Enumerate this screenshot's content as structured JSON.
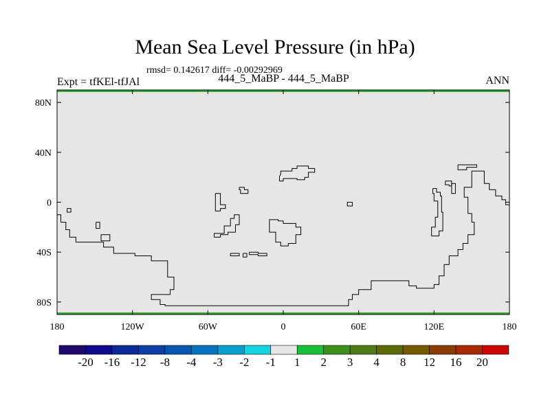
{
  "header": {
    "title": "Mean Sea Level Pressure (in hPa)",
    "stats": "rmsd= 0.142617 diff= -0.00292969",
    "left": "Expt = tfKEl-tfJAl",
    "center": "444_5_MaBP - 444_5_MaBP",
    "right": "ANN"
  },
  "chart_data": {
    "type": "heatmap",
    "title": "Mean Sea Level Pressure (in hPa)",
    "subtitle": "444_5_MaBP - 444_5_MaBP",
    "xlim": [
      -180,
      180
    ],
    "ylim": [
      -90,
      90
    ],
    "x_ticks": [
      {
        "value": -180,
        "label": "180"
      },
      {
        "value": -120,
        "label": "120W"
      },
      {
        "value": -60,
        "label": "60W"
      },
      {
        "value": 0,
        "label": "0"
      },
      {
        "value": 60,
        "label": "60E"
      },
      {
        "value": 120,
        "label": "120E"
      },
      {
        "value": 180,
        "label": "180"
      }
    ],
    "y_ticks": [
      {
        "value": 80,
        "label": "80N"
      },
      {
        "value": 40,
        "label": "40N"
      },
      {
        "value": 0,
        "label": "0"
      },
      {
        "value": -40,
        "label": "40S"
      },
      {
        "value": -80,
        "label": "80S"
      }
    ],
    "field_level": "-1 to 1",
    "field_color": "#e6e6e6",
    "edge_band_color": "#3aa33a",
    "colorbar": {
      "levels": [
        "-20",
        "-16",
        "-12",
        "-8",
        "-4",
        "-3",
        "-2",
        "-1",
        "1",
        "2",
        "3",
        "4",
        "8",
        "12",
        "16",
        "20"
      ],
      "colors": [
        "#1f0a6b",
        "#100a8c",
        "#0d2a99",
        "#0f3fa6",
        "#0a55b0",
        "#0a73c0",
        "#0a9fd0",
        "#16d4df",
        "#e6e6e6",
        "#1cbf3c",
        "#3f8f1c",
        "#507a14",
        "#5c6a0a",
        "#755a05",
        "#8a3e05",
        "#a52a05",
        "#cc0606"
      ]
    },
    "coastlines": [
      [
        [
          -180,
          -10
        ],
        [
          -177,
          -10
        ],
        [
          -177,
          -16
        ],
        [
          -173,
          -16
        ],
        [
          -173,
          -22
        ],
        [
          -170,
          -22
        ],
        [
          -170,
          -28
        ],
        [
          -165,
          -28
        ],
        [
          -165,
          -32
        ],
        [
          -143,
          -32
        ],
        [
          -143,
          -36
        ],
        [
          -135,
          -36
        ],
        [
          -135,
          -41
        ],
        [
          -118,
          -41
        ],
        [
          -118,
          -43
        ],
        [
          -105,
          -43
        ],
        [
          -105,
          -47
        ],
        [
          -92,
          -47
        ],
        [
          -92,
          -60
        ],
        [
          -87,
          -60
        ],
        [
          -87,
          -70
        ],
        [
          -90,
          -70
        ],
        [
          -90,
          -74
        ],
        [
          -105,
          -74
        ],
        [
          -105,
          -78
        ],
        [
          -98,
          -78
        ],
        [
          -98,
          -82
        ],
        [
          -94,
          -82
        ],
        [
          -94,
          -83
        ],
        [
          -40,
          -83
        ],
        [
          20,
          -83
        ],
        [
          52,
          -83
        ],
        [
          52,
          -78
        ],
        [
          55,
          -78
        ],
        [
          55,
          -74
        ],
        [
          60,
          -74
        ],
        [
          60,
          -70
        ],
        [
          70,
          -70
        ],
        [
          70,
          -63
        ],
        [
          100,
          -63
        ],
        [
          100,
          -67
        ],
        [
          106,
          -67
        ],
        [
          106,
          -69
        ],
        [
          120,
          -69
        ],
        [
          120,
          -66
        ],
        [
          124,
          -66
        ],
        [
          124,
          -59
        ],
        [
          128,
          -59
        ],
        [
          128,
          -50
        ],
        [
          132,
          -50
        ],
        [
          132,
          -43
        ],
        [
          139,
          -43
        ],
        [
          139,
          -38
        ],
        [
          143,
          -38
        ],
        [
          143,
          -33
        ],
        [
          147,
          -33
        ],
        [
          147,
          -26
        ],
        [
          152,
          -26
        ],
        [
          152,
          -16
        ],
        [
          150,
          -16
        ],
        [
          150,
          -9
        ],
        [
          147,
          -9
        ],
        [
          147,
          4
        ],
        [
          144,
          4
        ],
        [
          144,
          12
        ],
        [
          150,
          12
        ],
        [
          150,
          25
        ],
        [
          160,
          25
        ],
        [
          160,
          15
        ],
        [
          164,
          15
        ],
        [
          164,
          10
        ],
        [
          169,
          10
        ],
        [
          169,
          5
        ],
        [
          174,
          5
        ],
        [
          174,
          2
        ],
        [
          177,
          2
        ],
        [
          177,
          -2
        ],
        [
          180,
          -2
        ]
      ],
      [
        [
          -172,
          -5
        ],
        [
          -169,
          -5
        ],
        [
          -169,
          -8
        ],
        [
          -172,
          -8
        ],
        [
          -172,
          -5
        ]
      ],
      [
        [
          -149,
          -16
        ],
        [
          -146,
          -16
        ],
        [
          -146,
          -21
        ],
        [
          -149,
          -21
        ],
        [
          -149,
          -16
        ]
      ],
      [
        [
          -145,
          -26
        ],
        [
          -138,
          -26
        ],
        [
          -138,
          -31
        ],
        [
          -145,
          -31
        ],
        [
          -145,
          -26
        ]
      ],
      [
        [
          -54,
          7
        ],
        [
          -50,
          7
        ],
        [
          -50,
          -2
        ],
        [
          -46,
          -2
        ],
        [
          -46,
          -5
        ],
        [
          -50,
          -5
        ],
        [
          -50,
          -7
        ],
        [
          -54,
          -7
        ],
        [
          -54,
          7
        ]
      ],
      [
        [
          -55,
          -28
        ],
        [
          -50,
          -28
        ],
        [
          -50,
          -26
        ],
        [
          -44,
          -26
        ],
        [
          -44,
          -24
        ],
        [
          -38,
          -24
        ],
        [
          -38,
          -18
        ],
        [
          -35,
          -18
        ],
        [
          -35,
          -10
        ],
        [
          -39,
          -10
        ],
        [
          -39,
          -13
        ],
        [
          -42,
          -13
        ],
        [
          -42,
          -19
        ],
        [
          -47,
          -19
        ],
        [
          -47,
          -25
        ],
        [
          -55,
          -25
        ],
        [
          -55,
          -28
        ]
      ],
      [
        [
          -35,
          12
        ],
        [
          -31,
          12
        ],
        [
          -31,
          10
        ],
        [
          -28,
          10
        ],
        [
          -28,
          7
        ],
        [
          -34,
          7
        ],
        [
          -34,
          10
        ],
        [
          -35,
          10
        ],
        [
          -35,
          12
        ]
      ],
      [
        [
          -42,
          -41
        ],
        [
          -35,
          -41
        ],
        [
          -35,
          -43
        ],
        [
          -42,
          -43
        ],
        [
          -42,
          -41
        ]
      ],
      [
        [
          -32,
          -41
        ],
        [
          -29,
          -41
        ],
        [
          -29,
          -44
        ],
        [
          -32,
          -44
        ],
        [
          -32,
          -41
        ]
      ],
      [
        [
          -10,
          -14
        ],
        [
          -4,
          -14
        ],
        [
          -4,
          -15
        ],
        [
          0,
          -15
        ],
        [
          0,
          -17
        ],
        [
          10,
          -17
        ],
        [
          10,
          -20
        ],
        [
          14,
          -20
        ],
        [
          14,
          -26
        ],
        [
          10,
          -26
        ],
        [
          10,
          -33
        ],
        [
          4,
          -33
        ],
        [
          4,
          -35
        ],
        [
          -2,
          -35
        ],
        [
          -2,
          -32
        ],
        [
          -6,
          -32
        ],
        [
          -6,
          -24
        ],
        [
          -11,
          -24
        ],
        [
          -11,
          -21
        ],
        [
          -11,
          -14
        ],
        [
          -10,
          -14
        ]
      ],
      [
        [
          -27,
          -40
        ],
        [
          -20,
          -40
        ],
        [
          -20,
          -41
        ],
        [
          -13,
          -41
        ],
        [
          -13,
          -43
        ],
        [
          -20,
          -43
        ],
        [
          -20,
          -42
        ],
        [
          -27,
          -42
        ],
        [
          -27,
          -40
        ]
      ],
      [
        [
          -2,
          22
        ],
        [
          -2,
          25
        ],
        [
          7,
          25
        ],
        [
          7,
          27
        ],
        [
          11,
          27
        ],
        [
          11,
          29
        ],
        [
          20,
          29
        ],
        [
          20,
          27
        ],
        [
          25,
          27
        ],
        [
          25,
          24
        ],
        [
          20,
          24
        ],
        [
          20,
          20
        ],
        [
          17,
          20
        ],
        [
          17,
          18
        ],
        [
          11,
          18
        ],
        [
          11,
          19
        ],
        [
          0,
          19
        ],
        [
          0,
          17
        ],
        [
          -3,
          17
        ],
        [
          -3,
          21
        ],
        [
          -2,
          22
        ]
      ],
      [
        [
          51,
          0
        ],
        [
          55,
          0
        ],
        [
          55,
          -3
        ],
        [
          51,
          -3
        ],
        [
          51,
          0
        ]
      ],
      [
        [
          119,
          11
        ],
        [
          122,
          11
        ],
        [
          122,
          8
        ],
        [
          125,
          8
        ],
        [
          125,
          5
        ],
        [
          126,
          5
        ],
        [
          126,
          -8
        ],
        [
          127,
          -8
        ],
        [
          127,
          -23
        ],
        [
          124,
          -23
        ],
        [
          124,
          -27
        ],
        [
          118,
          -27
        ],
        [
          118,
          -20
        ],
        [
          121,
          -20
        ],
        [
          121,
          -12
        ],
        [
          123,
          -12
        ],
        [
          123,
          1
        ],
        [
          120,
          1
        ],
        [
          120,
          7
        ],
        [
          119,
          7
        ],
        [
          119,
          11
        ]
      ],
      [
        [
          129,
          17
        ],
        [
          134,
          17
        ],
        [
          134,
          13
        ],
        [
          132,
          13
        ],
        [
          132,
          14
        ],
        [
          129,
          14
        ],
        [
          129,
          17
        ]
      ],
      [
        [
          134,
          15
        ],
        [
          137,
          15
        ],
        [
          137,
          7
        ],
        [
          134,
          7
        ],
        [
          134,
          15
        ]
      ],
      [
        [
          139,
          30
        ],
        [
          154,
          30
        ],
        [
          154,
          28
        ],
        [
          146,
          28
        ],
        [
          146,
          26
        ],
        [
          139,
          26
        ],
        [
          139,
          30
        ]
      ]
    ]
  }
}
